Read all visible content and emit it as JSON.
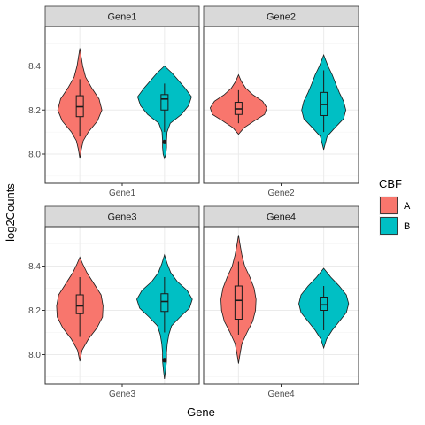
{
  "chart_data": {
    "type": "violin",
    "xlabel": "Gene",
    "ylabel": "log2Counts",
    "ylim": [
      7.85,
      8.57
    ],
    "yticks": [
      8.0,
      8.2,
      8.4
    ],
    "ytick_labels": [
      "8.0",
      "8.2",
      "8.4"
    ],
    "legend": {
      "title": "CBF",
      "position": "right",
      "entries": [
        {
          "name": "A",
          "color": "#F8766D"
        },
        {
          "name": "B",
          "color": "#00BFC4"
        }
      ]
    },
    "panels": [
      {
        "strip": "Gene1",
        "category": "Gene1",
        "groups": [
          {
            "name": "A",
            "min": 7.98,
            "max": 8.48,
            "box": {
              "q1": 8.17,
              "median": 8.215,
              "q3": 8.265,
              "whisker_low": 8.08,
              "whisker_high": 8.34
            },
            "outliers": [],
            "density": [
              [
                7.98,
                0.0
              ],
              [
                8.02,
                0.05
              ],
              [
                8.06,
                0.12
              ],
              [
                8.1,
                0.3
              ],
              [
                8.15,
                0.62
              ],
              [
                8.2,
                0.78
              ],
              [
                8.25,
                0.68
              ],
              [
                8.3,
                0.42
              ],
              [
                8.35,
                0.2
              ],
              [
                8.4,
                0.1
              ],
              [
                8.44,
                0.05
              ],
              [
                8.48,
                0.0
              ]
            ]
          },
          {
            "name": "B",
            "min": 7.98,
            "max": 8.4,
            "box": {
              "q1": 8.2,
              "median": 8.25,
              "q3": 8.27,
              "whisker_low": 8.1,
              "whisker_high": 8.32
            },
            "outliers": [
              8.055
            ],
            "density": [
              [
                7.98,
                0.0
              ],
              [
                8.0,
                0.05
              ],
              [
                8.03,
                0.07
              ],
              [
                8.06,
                0.07
              ],
              [
                8.1,
                0.09
              ],
              [
                8.14,
                0.2
              ],
              [
                8.18,
                0.6
              ],
              [
                8.22,
                0.85
              ],
              [
                8.26,
                0.95
              ],
              [
                8.3,
                0.72
              ],
              [
                8.34,
                0.45
              ],
              [
                8.37,
                0.25
              ],
              [
                8.4,
                0.0
              ]
            ]
          }
        ]
      },
      {
        "strip": "Gene2",
        "category": "Gene2",
        "groups": [
          {
            "name": "A",
            "min": 8.09,
            "max": 8.36,
            "box": {
              "q1": 8.18,
              "median": 8.205,
              "q3": 8.235,
              "whisker_low": 8.14,
              "whisker_high": 8.29
            },
            "outliers": [],
            "density": [
              [
                8.09,
                0.0
              ],
              [
                8.12,
                0.2
              ],
              [
                8.15,
                0.55
              ],
              [
                8.18,
                0.92
              ],
              [
                8.21,
                1.0
              ],
              [
                8.24,
                0.85
              ],
              [
                8.27,
                0.5
              ],
              [
                8.3,
                0.25
              ],
              [
                8.33,
                0.1
              ],
              [
                8.36,
                0.0
              ]
            ]
          },
          {
            "name": "B",
            "min": 8.02,
            "max": 8.45,
            "box": {
              "q1": 8.175,
              "median": 8.225,
              "q3": 8.28,
              "whisker_low": 8.1,
              "whisker_high": 8.38
            },
            "outliers": [],
            "density": [
              [
                8.02,
                0.0
              ],
              [
                8.05,
                0.06
              ],
              [
                8.08,
                0.12
              ],
              [
                8.12,
                0.4
              ],
              [
                8.16,
                0.7
              ],
              [
                8.2,
                0.78
              ],
              [
                8.24,
                0.7
              ],
              [
                8.28,
                0.55
              ],
              [
                8.32,
                0.42
              ],
              [
                8.36,
                0.3
              ],
              [
                8.4,
                0.15
              ],
              [
                8.45,
                0.0
              ]
            ]
          }
        ]
      },
      {
        "strip": "Gene3",
        "category": "Gene3",
        "groups": [
          {
            "name": "A",
            "min": 7.97,
            "max": 8.44,
            "box": {
              "q1": 8.185,
              "median": 8.22,
              "q3": 8.27,
              "whisker_low": 8.08,
              "whisker_high": 8.35
            },
            "outliers": [],
            "density": [
              [
                7.97,
                0.0
              ],
              [
                8.02,
                0.08
              ],
              [
                8.07,
                0.3
              ],
              [
                8.12,
                0.6
              ],
              [
                8.17,
                0.8
              ],
              [
                8.22,
                0.82
              ],
              [
                8.27,
                0.75
              ],
              [
                8.32,
                0.5
              ],
              [
                8.37,
                0.25
              ],
              [
                8.41,
                0.1
              ],
              [
                8.44,
                0.0
              ]
            ]
          },
          {
            "name": "B",
            "min": 7.89,
            "max": 8.45,
            "box": {
              "q1": 8.195,
              "median": 8.24,
              "q3": 8.275,
              "whisker_low": 8.1,
              "whisker_high": 8.35
            },
            "outliers": [
              7.975
            ],
            "density": [
              [
                7.89,
                0.0
              ],
              [
                7.93,
                0.04
              ],
              [
                7.97,
                0.07
              ],
              [
                8.01,
                0.07
              ],
              [
                8.05,
                0.1
              ],
              [
                8.09,
                0.15
              ],
              [
                8.13,
                0.25
              ],
              [
                8.17,
                0.55
              ],
              [
                8.21,
                0.88
              ],
              [
                8.25,
                0.98
              ],
              [
                8.29,
                0.8
              ],
              [
                8.33,
                0.45
              ],
              [
                8.37,
                0.22
              ],
              [
                8.41,
                0.1
              ],
              [
                8.45,
                0.0
              ]
            ]
          }
        ]
      },
      {
        "strip": "Gene4",
        "category": "Gene4",
        "groups": [
          {
            "name": "A",
            "min": 7.96,
            "max": 8.54,
            "box": {
              "q1": 8.16,
              "median": 8.245,
              "q3": 8.31,
              "whisker_low": 8.09,
              "whisker_high": 8.42
            },
            "outliers": [],
            "density": [
              [
                7.96,
                0.0
              ],
              [
                8.0,
                0.05
              ],
              [
                8.05,
                0.12
              ],
              [
                8.1,
                0.3
              ],
              [
                8.15,
                0.5
              ],
              [
                8.2,
                0.6
              ],
              [
                8.25,
                0.62
              ],
              [
                8.3,
                0.55
              ],
              [
                8.35,
                0.4
              ],
              [
                8.4,
                0.22
              ],
              [
                8.45,
                0.12
              ],
              [
                8.5,
                0.05
              ],
              [
                8.54,
                0.0
              ]
            ]
          },
          {
            "name": "B",
            "min": 8.03,
            "max": 8.39,
            "box": {
              "q1": 8.2,
              "median": 8.225,
              "q3": 8.26,
              "whisker_low": 8.11,
              "whisker_high": 8.31
            },
            "outliers": [],
            "density": [
              [
                8.03,
                0.0
              ],
              [
                8.07,
                0.1
              ],
              [
                8.11,
                0.3
              ],
              [
                8.15,
                0.55
              ],
              [
                8.19,
                0.8
              ],
              [
                8.23,
                0.88
              ],
              [
                8.27,
                0.8
              ],
              [
                8.31,
                0.55
              ],
              [
                8.35,
                0.25
              ],
              [
                8.39,
                0.0
              ]
            ]
          }
        ]
      }
    ]
  }
}
